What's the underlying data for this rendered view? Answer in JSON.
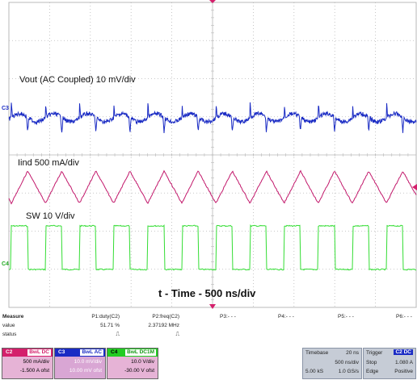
{
  "labels": {
    "vout": "Vout (AC Coupled) 10 mV/div",
    "iind": "Iind 500 mA/div",
    "sw": "SW 10 V/div",
    "time_caption": "t - Time - 500 ns/div",
    "c3_marker": "C3",
    "c4_marker": "C4"
  },
  "colors": {
    "c3_trace": "#1a2bc4",
    "c2_trace": "#c2186b",
    "c4_trace": "#33dd33",
    "grid": "#b8b8b8",
    "panel_bg": "#c6ccd6"
  },
  "measure": {
    "header": "Measure",
    "row_value": "value",
    "row_status": "status",
    "columns": [
      {
        "name": "P1:duty(C2)",
        "value": "51.71 %",
        "status": "⎍"
      },
      {
        "name": "P2:freq(C2)",
        "value": "2.37192 MHz",
        "status": "⎍"
      },
      {
        "name": "P3:- - -",
        "value": "",
        "status": ""
      },
      {
        "name": "P4:- - -",
        "value": "",
        "status": ""
      },
      {
        "name": "P5:- - -",
        "value": "",
        "status": ""
      },
      {
        "name": "P6:- - -",
        "value": "",
        "status": ""
      }
    ]
  },
  "channels": [
    {
      "tag": "C2",
      "coupling": "BwL DC",
      "line1": "500 mA/div",
      "line2": "-1.500 A ofst",
      "color": "#d4206c",
      "bg": "#ffffff"
    },
    {
      "tag": "C3",
      "coupling": "BwL AC",
      "line1": "10.0 mV/div",
      "line2": "10.00 mV ofst",
      "color": "#1a2bc4",
      "bg": "#d9a6d4"
    },
    {
      "tag": "C4",
      "coupling": "BwL DC1M",
      "line1": "10.0 V/div",
      "line2": "-30.00 V ofst",
      "color": "#22cc22",
      "bg": "#ffffff"
    }
  ],
  "timebase": {
    "label": "Timebase",
    "delay": "20 ns",
    "per_div": "500 ns/div",
    "samples": "5.00 kS",
    "rate": "1.0 GS/s"
  },
  "trigger": {
    "label": "Trigger",
    "channel_badge": "C2 DC",
    "mode": "Stop",
    "level": "1.080 A",
    "type": "Edge",
    "slope": "Positive"
  }
}
